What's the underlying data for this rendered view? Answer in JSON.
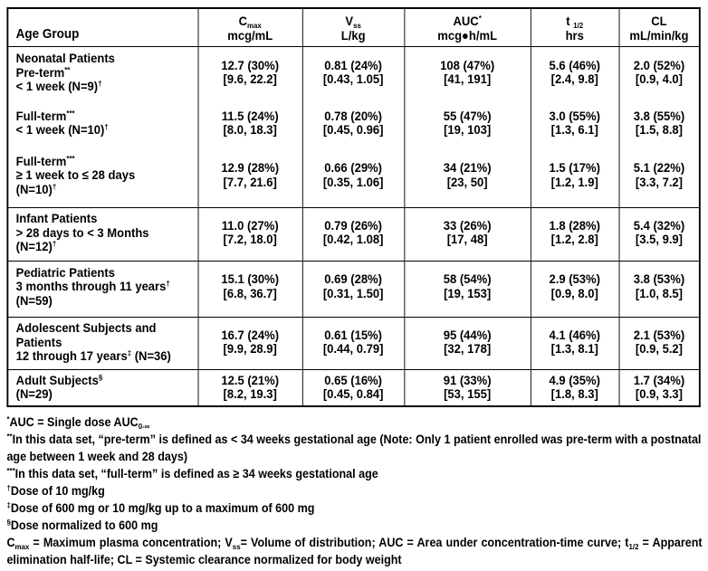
{
  "header": {
    "row_label": "Age Group",
    "columns": [
      {
        "line1": "C_{max}",
        "line2": "mcg/mL"
      },
      {
        "line1": "V_{ss}",
        "line2": "L/kg"
      },
      {
        "line1": "AUC^{*}",
        "line2": "mcg●h/mL"
      },
      {
        "line1": "t _{1/2}",
        "line2": "hrs"
      },
      {
        "line1": "CL",
        "line2": "mL/min/kg"
      }
    ]
  },
  "rows": [
    {
      "type": "section",
      "lines": [
        "Neonatal Patients",
        "Pre-term^{**}",
        "< 1 week (N=9)^{†}"
      ],
      "cells": [
        [
          "12.7 (30%)",
          "[9.6, 22.2]"
        ],
        [
          "0.81 (24%)",
          "[0.43, 1.05]"
        ],
        [
          "108 (47%)",
          "[41, 191]"
        ],
        [
          "5.6 (46%)",
          "[2.4, 9.8]"
        ],
        [
          "2.0 (52%)",
          "[0.9, 4.0]"
        ]
      ]
    },
    {
      "type": "sub",
      "lines": [
        "Full-term^{***}",
        "< 1 week (N=10)^{†}"
      ],
      "cells": [
        [
          "11.5 (24%)",
          "[8.0, 18.3]"
        ],
        [
          "0.78 (20%)",
          "[0.45, 0.96]"
        ],
        [
          "55 (47%)",
          "[19, 103]"
        ],
        [
          "3.0 (55%)",
          "[1.3, 6.1]"
        ],
        [
          "3.8 (55%)",
          "[1.5, 8.8]"
        ]
      ]
    },
    {
      "type": "sub",
      "lines": [
        "Full-term^{***}",
        "≥ 1 week to ≤ 28 days",
        "(N=10)^{†}"
      ],
      "cells": [
        [
          "12.9 (28%)",
          "[7.7, 21.6]"
        ],
        [
          "0.66 (29%)",
          "[0.35, 1.06]"
        ],
        [
          "34 (21%)",
          "[23, 50]"
        ],
        [
          "1.5 (17%)",
          "[1.2, 1.9]"
        ],
        [
          "5.1 (22%)",
          "[3.3, 7.2]"
        ]
      ]
    },
    {
      "type": "section",
      "lines": [
        "Infant Patients",
        "> 28 days to < 3 Months",
        "(N=12)^{†}"
      ],
      "cells": [
        [
          "11.0 (27%)",
          "[7.2, 18.0]"
        ],
        [
          "0.79 (26%)",
          "[0.42, 1.08]"
        ],
        [
          "33 (26%)",
          "[17, 48]"
        ],
        [
          "1.8 (28%)",
          "[1.2, 2.8]"
        ],
        [
          "5.4 (32%)",
          "[3.5, 9.9]"
        ]
      ]
    },
    {
      "type": "section",
      "lines": [
        "Pediatric Patients",
        "3 months through 11 years^{†}",
        "(N=59)"
      ],
      "cells": [
        [
          "15.1 (30%)",
          "[6.8, 36.7]"
        ],
        [
          "0.69 (28%)",
          "[0.31, 1.50]"
        ],
        [
          "58 (54%)",
          "[19, 153]"
        ],
        [
          "2.9 (53%)",
          "[0.9, 8.0]"
        ],
        [
          "3.8 (53%)",
          "[1.0, 8.5]"
        ]
      ]
    },
    {
      "type": "section",
      "lines": [
        "Adolescent Subjects and",
        "Patients",
        "12 through 17 years^{‡} (N=36)"
      ],
      "cells": [
        [
          "16.7 (24%)",
          "[9.9, 28.9]"
        ],
        [
          "0.61 (15%)",
          "[0.44, 0.79]"
        ],
        [
          "95 (44%)",
          "[32, 178]"
        ],
        [
          "4.1 (46%)",
          "[1.3, 8.1]"
        ],
        [
          "2.1 (53%)",
          "[0.9, 5.2]"
        ]
      ]
    },
    {
      "type": "section",
      "lines": [
        "Adult Subjects^{§}",
        "(N=29)"
      ],
      "cells": [
        [
          "12.5 (21%)",
          "[8.2, 19.3]"
        ],
        [
          "0.65 (16%)",
          "[0.45, 0.84]"
        ],
        [
          "91 (33%)",
          "[53, 155]"
        ],
        [
          "4.9 (35%)",
          "[1.8, 8.3]"
        ],
        [
          "1.7 (34%)",
          "[0.9, 3.3]"
        ]
      ]
    }
  ],
  "footnotes": [
    "^{*}AUC = Single dose AUC_{0-∞}",
    "^{**}In this data set, “pre-term” is defined as < 34 weeks gestational age (Note: Only 1 patient enrolled was pre-term with a postnatal age between 1 week and 28 days)",
    "^{***}In this data set, “full-term” is defined as ≥ 34 weeks gestational age",
    "^{†}Dose of 10 mg/kg",
    "^{‡}Dose of 600 mg or 10 mg/kg up to a maximum of 600 mg",
    "^{§}Dose normalized to 600 mg",
    "C_{max} = Maximum plasma concentration; V_{ss}= Volume of distribution; AUC = Area under concentration-time curve; t_{1/2} = Apparent elimination half-life; CL = Systemic clearance normalized for body weight"
  ]
}
